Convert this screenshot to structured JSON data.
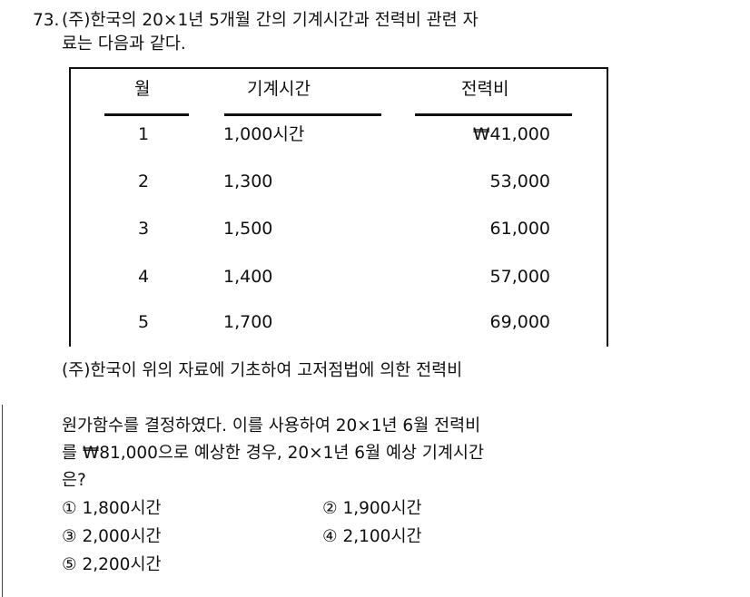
{
  "question": {
    "number": "73.",
    "intro_lines": [
      "(주)한국의 20×1년 5개월 간의 기계시간과 전력비 관련 자",
      "료는 다음과 같다."
    ],
    "body_lines": [
      "(주)한국이 위의 자료에 기초하여 고저점법에 의한 전력비",
      "원가함수를 결정하였다. 이를 사용하여 20×1년 6월 전력비",
      "를 ₩81,000으로 예상한 경우, 20×1년 6월 예상 기계시간",
      "은?"
    ]
  },
  "table": {
    "headers": [
      "월",
      "기계시간",
      "전력비"
    ],
    "rows": [
      [
        "1",
        "1,000시간",
        "₩41,000"
      ],
      [
        "2",
        "1,300",
        "53,000"
      ],
      [
        "3",
        "1,500",
        "61,000"
      ],
      [
        "4",
        "1,400",
        "57,000"
      ],
      [
        "5",
        "1,700",
        "69,000"
      ]
    ]
  },
  "choices": [
    {
      "mark": "①",
      "text": "1,800시간"
    },
    {
      "mark": "②",
      "text": "1,900시간"
    },
    {
      "mark": "③",
      "text": "2,000시간"
    },
    {
      "mark": "④",
      "text": "2,100시간"
    },
    {
      "mark": "⑤",
      "text": "2,200시간"
    }
  ]
}
